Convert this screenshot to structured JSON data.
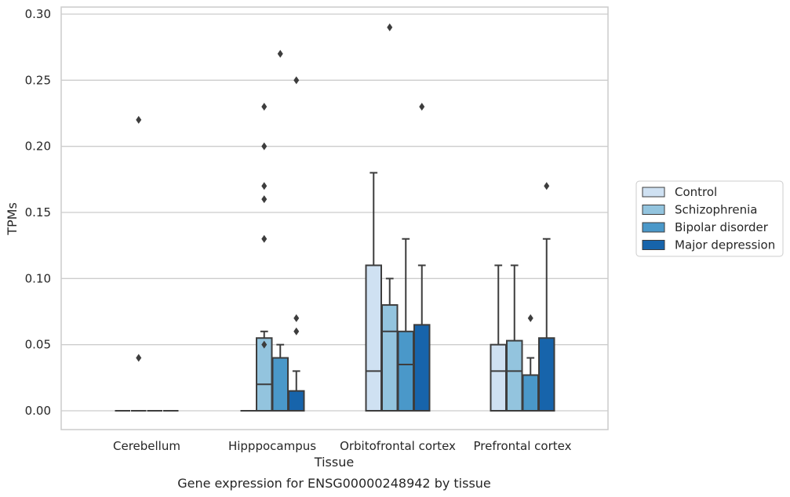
{
  "chart_data": {
    "type": "box",
    "xlabel": "Tissue",
    "ylabel": "TPMs",
    "caption": "Gene expression for ENSG00000248942 by tissue",
    "ylim": [
      -0.015,
      0.305
    ],
    "yticks": [
      0.0,
      0.05,
      0.1,
      0.15,
      0.2,
      0.25,
      0.3
    ],
    "ytick_labels": [
      "0.00",
      "0.05",
      "0.10",
      "0.15",
      "0.20",
      "0.25",
      "0.30"
    ],
    "grid": "horizontal",
    "legend_position": "right",
    "categories": [
      "Cerebellum",
      "Hipppocampus",
      "Orbitofrontal cortex",
      "Prefrontal cortex"
    ],
    "series": [
      {
        "name": "Control",
        "color": "#cfe1f2",
        "boxes": [
          {
            "q1": 0,
            "median": 0,
            "q3": 0,
            "whisker_low": 0,
            "whisker_high": 0,
            "outliers": []
          },
          {
            "q1": 0,
            "median": 0,
            "q3": 0,
            "whisker_low": 0,
            "whisker_high": 0,
            "outliers": []
          },
          {
            "q1": 0,
            "median": 0.03,
            "q3": 0.11,
            "whisker_low": 0,
            "whisker_high": 0.18,
            "outliers": []
          },
          {
            "q1": 0,
            "median": 0.03,
            "q3": 0.05,
            "whisker_low": 0,
            "whisker_high": 0.11,
            "outliers": []
          }
        ]
      },
      {
        "name": "Schizophrenia",
        "color": "#93c4de",
        "boxes": [
          {
            "q1": 0,
            "median": 0,
            "q3": 0,
            "whisker_low": 0,
            "whisker_high": 0,
            "outliers": [
              0.22,
              0.04
            ]
          },
          {
            "q1": 0,
            "median": 0.02,
            "q3": 0.055,
            "whisker_low": 0,
            "whisker_high": 0.06,
            "outliers": [
              0.23,
              0.05,
              0.2,
              0.17,
              0.16,
              0.13
            ]
          },
          {
            "q1": 0,
            "median": 0.06,
            "q3": 0.08,
            "whisker_low": 0,
            "whisker_high": 0.1,
            "outliers": [
              0.29
            ]
          },
          {
            "q1": 0,
            "median": 0.03,
            "q3": 0.053,
            "whisker_low": 0,
            "whisker_high": 0.11,
            "outliers": []
          }
        ]
      },
      {
        "name": "Bipolar disorder",
        "color": "#4a98c9",
        "boxes": [
          {
            "q1": 0,
            "median": 0,
            "q3": 0,
            "whisker_low": 0,
            "whisker_high": 0,
            "outliers": []
          },
          {
            "q1": 0,
            "median": 0.04,
            "q3": 0.04,
            "whisker_low": 0,
            "whisker_high": 0.05,
            "outliers": [
              0.27
            ]
          },
          {
            "q1": 0,
            "median": 0.035,
            "q3": 0.06,
            "whisker_low": 0,
            "whisker_high": 0.13,
            "outliers": []
          },
          {
            "q1": 0,
            "median": 0.027,
            "q3": 0.027,
            "whisker_low": 0,
            "whisker_high": 0.04,
            "outliers": [
              0.07
            ]
          }
        ]
      },
      {
        "name": "Major depression",
        "color": "#1764ab",
        "boxes": [
          {
            "q1": 0,
            "median": 0,
            "q3": 0,
            "whisker_low": 0,
            "whisker_high": 0,
            "outliers": []
          },
          {
            "q1": 0,
            "median": 0,
            "q3": 0.015,
            "whisker_low": 0,
            "whisker_high": 0.03,
            "outliers": [
              0.25,
              0.07,
              0.06
            ]
          },
          {
            "q1": 0,
            "median": 0,
            "q3": 0.065,
            "whisker_low": 0,
            "whisker_high": 0.11,
            "outliers": [
              0.23
            ]
          },
          {
            "q1": 0,
            "median": 0,
            "q3": 0.055,
            "whisker_low": 0,
            "whisker_high": 0.13,
            "outliers": [
              0.17
            ]
          }
        ]
      }
    ]
  }
}
